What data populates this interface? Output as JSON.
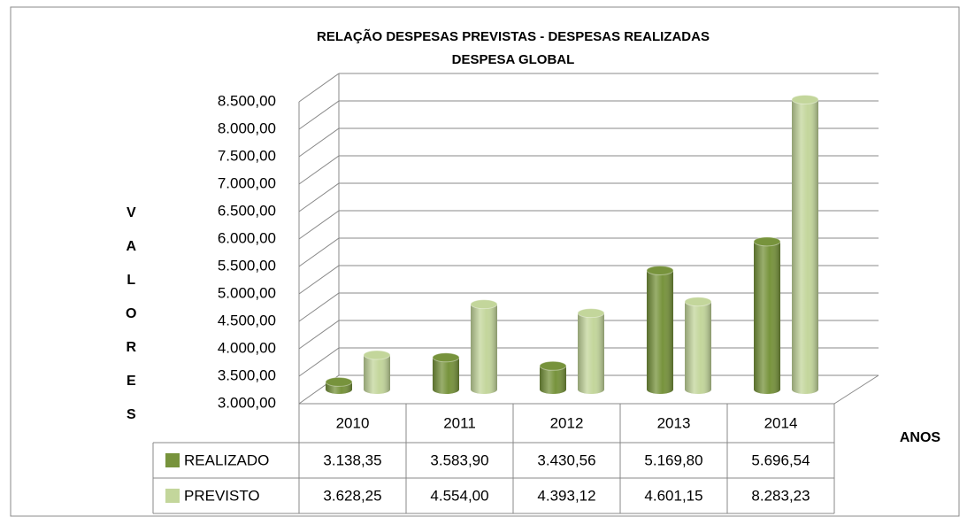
{
  "chart_data": {
    "type": "bar3d",
    "title": "RELAÇÃO DESPESAS PREVISTAS - DESPESAS REALIZADAS",
    "subtitle": "DESPESA  GLOBAL",
    "y_label": "VALORES",
    "x_label": "ANOS",
    "categories": [
      "2010",
      "2011",
      "2012",
      "2013",
      "2014"
    ],
    "series": [
      {
        "name": "REALIZADO",
        "color": "#77933c",
        "values": [
          3138.35,
          3583.9,
          3430.56,
          5169.8,
          5696.54
        ],
        "value_labels": [
          "3.138,35",
          "3.583,90",
          "3.430,56",
          "5.169,80",
          "5.696,54"
        ]
      },
      {
        "name": "PREVISTO",
        "color": "#c3d69b",
        "values": [
          3628.25,
          4554.0,
          4393.12,
          4601.15,
          8283.23
        ],
        "value_labels": [
          "3.628,25",
          "4.554,00",
          "4.393,12",
          "4.601,15",
          "8.283,23"
        ]
      }
    ],
    "ylim": [
      3000,
      8500
    ],
    "yticks": [
      {
        "value": 3000,
        "label": "3.000,00"
      },
      {
        "value": 3500,
        "label": "3.500,00"
      },
      {
        "value": 4000,
        "label": "4.000,00"
      },
      {
        "value": 4500,
        "label": "4.500,00"
      },
      {
        "value": 5000,
        "label": "5.000,00"
      },
      {
        "value": 5500,
        "label": "5.500,00"
      },
      {
        "value": 6000,
        "label": "6.000,00"
      },
      {
        "value": 6500,
        "label": "6.500,00"
      },
      {
        "value": 7000,
        "label": "7.000,00"
      },
      {
        "value": 7500,
        "label": "7.500,00"
      },
      {
        "value": 8000,
        "label": "8.000,00"
      },
      {
        "value": 8500,
        "label": "8.500,00"
      }
    ],
    "grid": true
  }
}
